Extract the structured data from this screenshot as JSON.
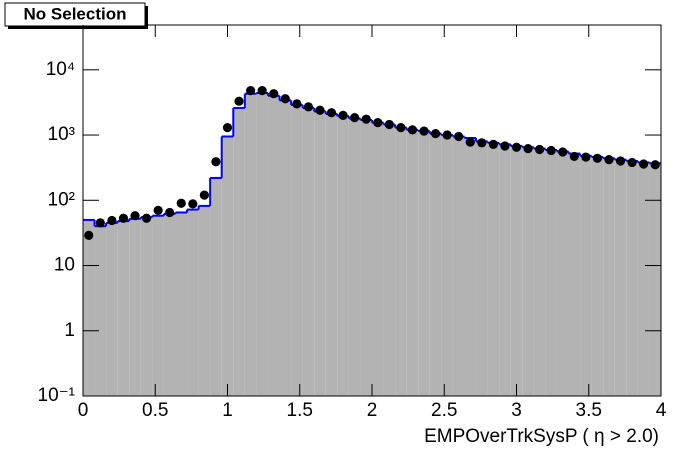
{
  "chart_data": {
    "type": "hist",
    "title": "No Selection",
    "x_label": "EMPOverTrkSysP ( η > 2.0)",
    "bins": [
      0,
      0.08,
      0.16,
      0.24,
      0.32,
      0.4,
      0.48,
      0.56,
      0.64,
      0.72,
      0.8,
      0.88,
      0.96,
      1.04,
      1.12,
      1.2,
      1.28,
      1.36,
      1.44,
      1.52,
      1.6,
      1.68,
      1.76,
      1.84,
      1.92,
      2,
      2.08,
      2.16,
      2.24,
      2.32,
      2.4,
      2.48,
      2.56,
      2.64,
      2.72,
      2.8,
      2.88,
      2.96,
      3.04,
      3.12,
      3.2,
      3.28,
      3.36,
      3.44,
      3.52,
      3.6,
      3.68,
      3.76,
      3.84,
      3.92,
      4
    ],
    "simulation": {
      "fill": "#b3b3b3",
      "color": "#0000ff",
      "values": [
        50,
        40,
        45,
        48,
        52,
        55,
        58,
        62,
        65,
        72,
        82,
        220,
        950,
        2600,
        4300,
        4400,
        4000,
        3400,
        2900,
        2600,
        2300,
        2100,
        1950,
        1800,
        1700,
        1550,
        1450,
        1300,
        1200,
        1150,
        1050,
        1000,
        950,
        900,
        800,
        760,
        720,
        680,
        650,
        620,
        590,
        560,
        520,
        480,
        460,
        440,
        420,
        400,
        380,
        370
      ]
    },
    "data": {
      "color": "#000000",
      "values": [
        29,
        45,
        49,
        53,
        58,
        53,
        70,
        65,
        90,
        88,
        120,
        390,
        1300,
        3300,
        4800,
        4800,
        4300,
        3600,
        3000,
        2700,
        2400,
        2200,
        2000,
        1850,
        1750,
        1550,
        1450,
        1300,
        1200,
        1150,
        1050,
        1000,
        950,
        780,
        760,
        720,
        680,
        650,
        620,
        600,
        580,
        550,
        470,
        460,
        440,
        420,
        400,
        380,
        360,
        350
      ]
    },
    "xlim": [
      0,
      4
    ],
    "xticks": [
      0,
      0.5,
      1,
      1.5,
      2,
      2.5,
      3,
      3.5,
      4
    ],
    "ylim": [
      0.1,
      48600
    ],
    "log_y": true,
    "yticks": [
      {
        "value": 0.1,
        "label": "10⁻¹"
      },
      1,
      10,
      {
        "value": 100,
        "label": "10²"
      },
      {
        "value": 1000,
        "label": "10³"
      },
      {
        "value": 10000,
        "label": "10⁴"
      }
    ]
  }
}
